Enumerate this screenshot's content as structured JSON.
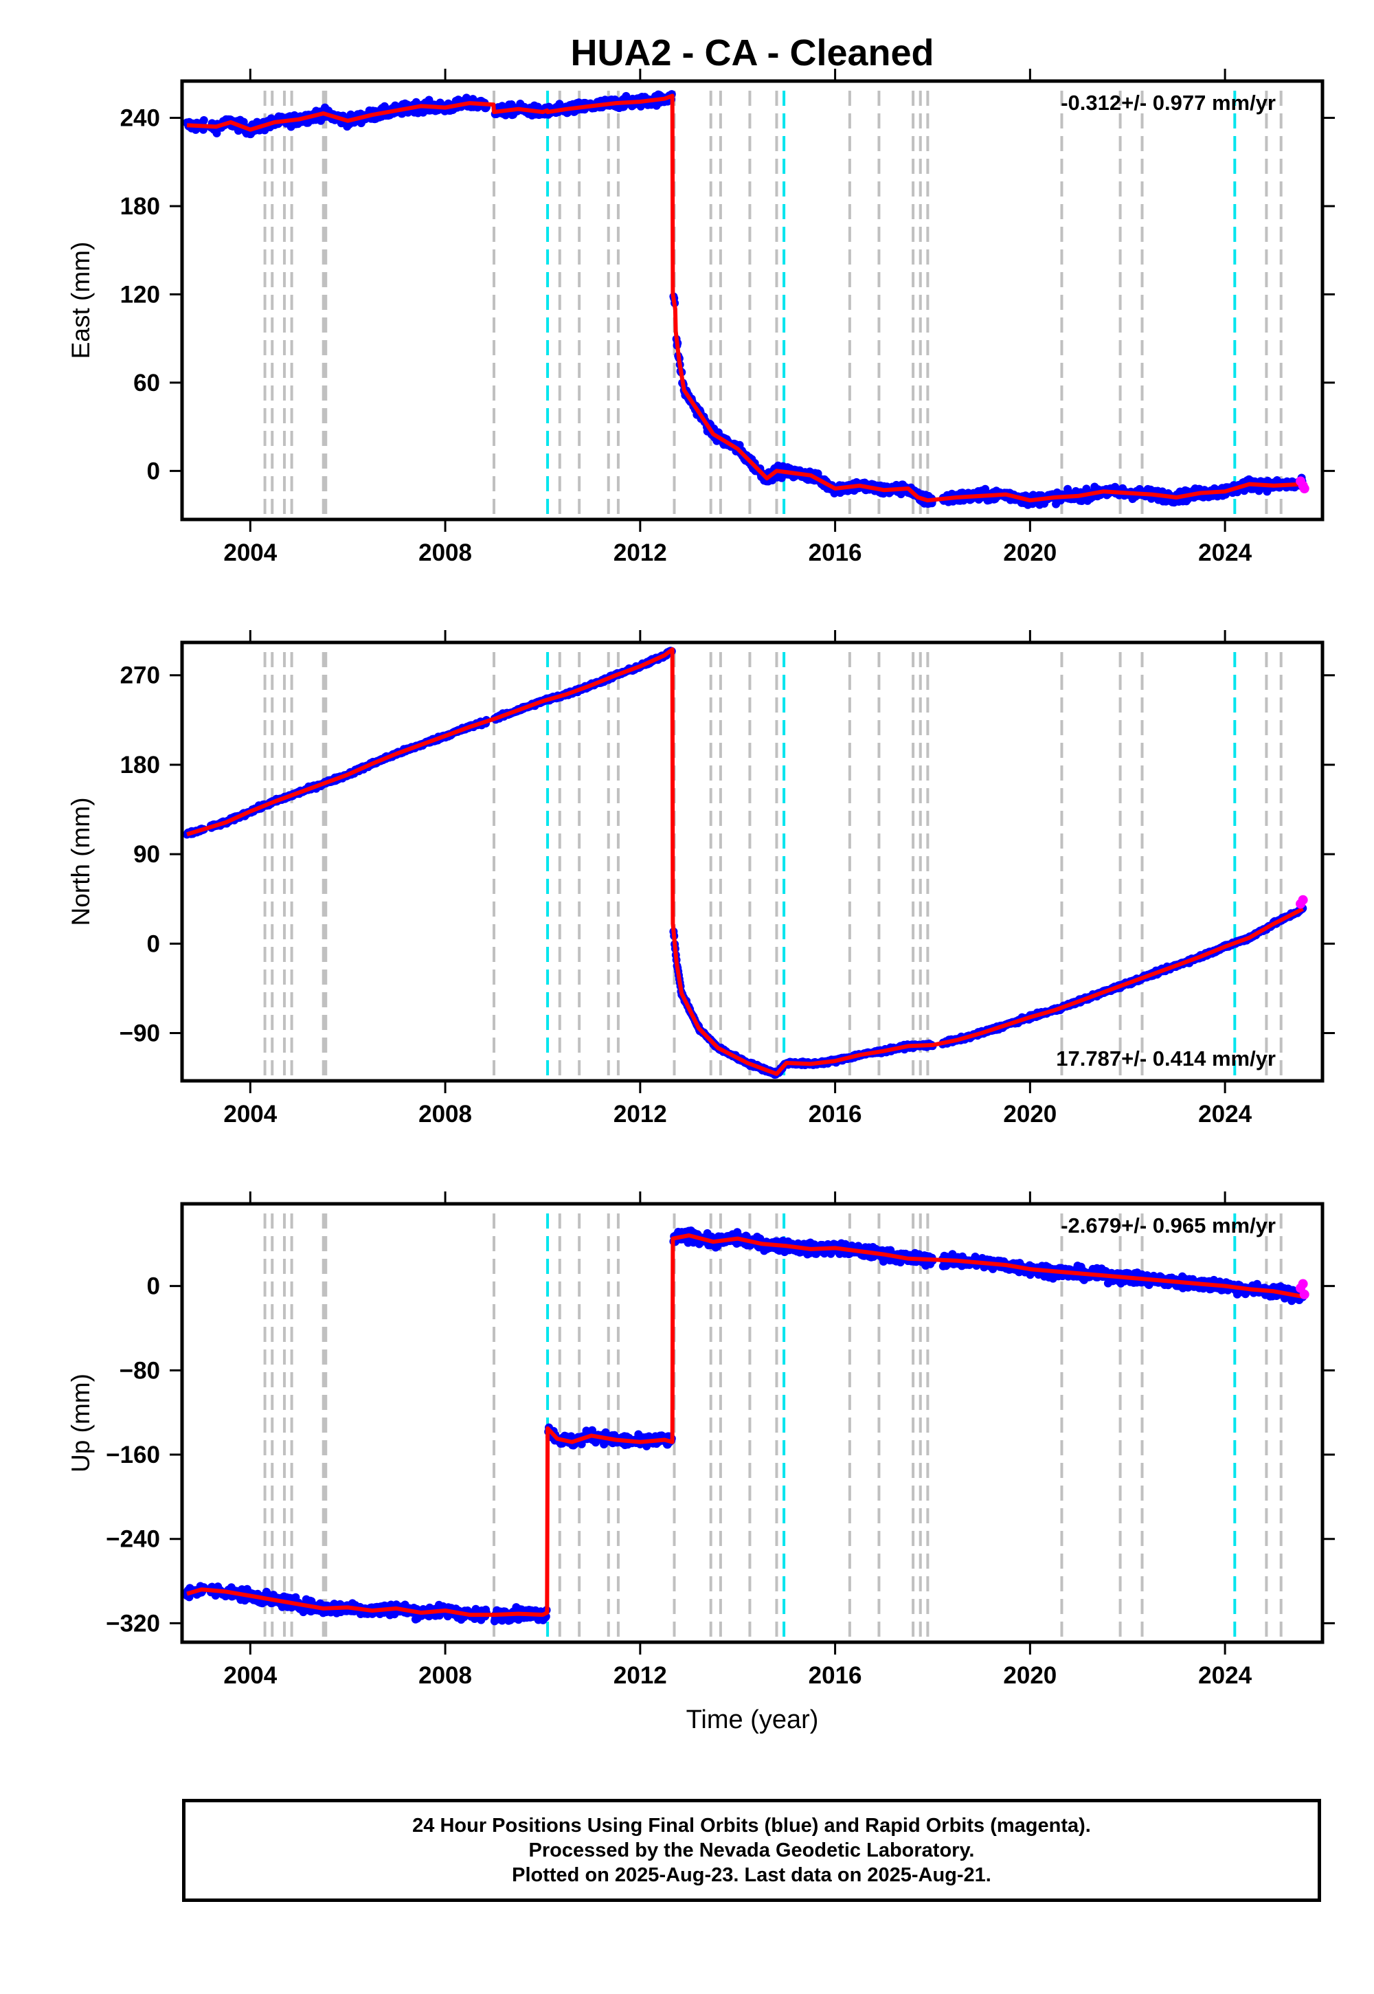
{
  "figure": {
    "title": "HUA2  - CA - Cleaned",
    "xlabel": "Time (year)"
  },
  "colors": {
    "final_orbits": "#0000ff",
    "rapid_orbits": "#ff00ff",
    "model": "#ff0000",
    "gray_dashed": "#c0c0c0",
    "cyan_dashed": "#00e5ee"
  },
  "footer": {
    "line1": "24 Hour Positions Using Final Orbits (blue) and Rapid Orbits (magenta).",
    "line2": "Processed by the Nevada Geodetic Laboratory.",
    "line3": "Plotted on 2025-Aug-23. Last data on 2025-Aug-21."
  },
  "chart_data": [
    {
      "type": "scatter",
      "ylabel": "East (mm)",
      "rate_text": "-0.312+/- 0.977 mm/yr",
      "rate_position": "top-right",
      "xlim": [
        2002.6,
        2026.0
      ],
      "ylim": [
        -33,
        265
      ],
      "xticks": [
        2004,
        2008,
        2012,
        2016,
        2020,
        2024
      ],
      "yticks": [
        0,
        60,
        120,
        180,
        240
      ],
      "gray_lines": [
        2004.3,
        2004.45,
        2004.7,
        2004.85,
        2005.5,
        2005.55,
        2009.0,
        2010.35,
        2010.75,
        2011.35,
        2011.55,
        2012.7,
        2013.45,
        2013.65,
        2014.25,
        2014.8,
        2016.3,
        2016.9,
        2017.6,
        2017.75,
        2017.9,
        2020.65,
        2021.85,
        2022.3,
        2024.85,
        2025.15
      ],
      "cyan_lines": [
        2010.1,
        2014.95,
        2024.2
      ],
      "trend": {
        "x": [
          2002.7,
          2003.3,
          2003.6,
          2004.0,
          2004.5,
          2005.0,
          2005.5,
          2006.0,
          2006.5,
          2007.0,
          2007.5,
          2008.0,
          2008.5,
          2008.99,
          2009.0,
          2009.5,
          2010.0,
          2010.09,
          2010.1,
          2010.5,
          2011.0,
          2011.5,
          2012.0,
          2012.5,
          2012.66,
          2012.67,
          2012.72,
          2012.73,
          2012.8,
          2012.9,
          2013.2,
          2013.5,
          2014.0,
          2014.6,
          2014.8,
          2015.5,
          2016.0,
          2016.5,
          2017.0,
          2017.5,
          2017.7,
          2017.9,
          2018.5,
          2019.0,
          2019.5,
          2020.0,
          2020.5,
          2021.0,
          2021.5,
          2022.0,
          2022.5,
          2023.0,
          2023.5,
          2024.0,
          2024.5,
          2025.0,
          2025.6
        ],
        "y": [
          235,
          234,
          237,
          232,
          237,
          239,
          243,
          238,
          242,
          245,
          248,
          247,
          250,
          249,
          244,
          246,
          244,
          245,
          244,
          246,
          248,
          250,
          251,
          253,
          255,
          120,
          110,
          95,
          75,
          55,
          40,
          25,
          15,
          -5,
          0,
          -3,
          -12,
          -10,
          -13,
          -12,
          -18,
          -20,
          -18,
          -17,
          -16,
          -20,
          -18,
          -17,
          -14,
          -15,
          -16,
          -18,
          -15,
          -14,
          -9,
          -10,
          -9
        ]
      },
      "scatter_spread": 6,
      "rapid_points": {
        "x": [
          2025.55,
          2025.6,
          2025.63
        ],
        "y": [
          -7,
          -10,
          -12
        ]
      }
    },
    {
      "type": "scatter",
      "ylabel": "North (mm)",
      "rate_text": "17.787+/- 0.414 mm/yr",
      "rate_position": "bottom-right",
      "xlim": [
        2002.6,
        2026.0
      ],
      "ylim": [
        -138,
        303
      ],
      "xticks": [
        2004,
        2008,
        2012,
        2016,
        2020,
        2024
      ],
      "yticks": [
        -90,
        0,
        90,
        180,
        270
      ],
      "gray_lines": [
        2004.3,
        2004.45,
        2004.7,
        2004.85,
        2005.5,
        2005.55,
        2009.0,
        2010.35,
        2010.75,
        2011.35,
        2011.55,
        2012.7,
        2013.45,
        2013.65,
        2014.25,
        2014.8,
        2016.3,
        2016.9,
        2017.6,
        2017.75,
        2017.9,
        2020.65,
        2021.85,
        2022.3,
        2024.85,
        2025.15
      ],
      "cyan_lines": [
        2010.1,
        2014.95,
        2024.2
      ],
      "trend": {
        "x": [
          2002.7,
          2003.5,
          2004.0,
          2004.5,
          2005.0,
          2005.5,
          2006.0,
          2006.5,
          2007.0,
          2007.5,
          2008.0,
          2008.5,
          2009.0,
          2009.5,
          2010.0,
          2010.5,
          2011.0,
          2011.5,
          2012.0,
          2012.5,
          2012.66,
          2012.67,
          2012.75,
          2012.85,
          2013.2,
          2013.6,
          2014.2,
          2014.8,
          2015.0,
          2015.5,
          2016.0,
          2016.5,
          2017.0,
          2017.5,
          2018.0,
          2018.5,
          2019.0,
          2019.5,
          2020.0,
          2020.5,
          2021.0,
          2021.5,
          2022.0,
          2022.5,
          2023.0,
          2023.5,
          2024.0,
          2024.5,
          2025.0,
          2025.6
        ],
        "y": [
          110,
          122,
          133,
          143,
          152,
          161,
          170,
          181,
          191,
          200,
          209,
          218,
          226,
          235,
          244,
          251,
          260,
          270,
          279,
          290,
          296,
          20,
          -20,
          -50,
          -85,
          -105,
          -120,
          -131,
          -120,
          -121,
          -118,
          -112,
          -108,
          -103,
          -102,
          -97,
          -90,
          -82,
          -74,
          -67,
          -58,
          -49,
          -40,
          -31,
          -22,
          -13,
          -3,
          6,
          20,
          35
        ]
      },
      "scatter_spread": 3,
      "rapid_points": {
        "x": [
          2025.55,
          2025.6
        ],
        "y": [
          40,
          44
        ]
      }
    },
    {
      "type": "scatter",
      "ylabel": "Up (mm)",
      "rate_text": "-2.679+/- 0.965 mm/yr",
      "rate_position": "top-right",
      "xlim": [
        2002.6,
        2026.0
      ],
      "ylim": [
        -338,
        78
      ],
      "xticks": [
        2004,
        2008,
        2012,
        2016,
        2020,
        2024
      ],
      "yticks": [
        -320,
        -240,
        -160,
        -80,
        0
      ],
      "gray_lines": [
        2004.3,
        2004.45,
        2004.7,
        2004.85,
        2005.5,
        2005.55,
        2009.0,
        2010.35,
        2010.75,
        2011.35,
        2011.55,
        2012.7,
        2013.45,
        2013.65,
        2014.25,
        2014.8,
        2016.3,
        2016.9,
        2017.6,
        2017.75,
        2017.9,
        2020.65,
        2021.85,
        2022.3,
        2024.85,
        2025.15
      ],
      "cyan_lines": [
        2010.1,
        2014.95,
        2024.2
      ],
      "trend": {
        "x": [
          2002.7,
          2003.0,
          2003.5,
          2004.0,
          2004.5,
          2005.0,
          2005.5,
          2006.0,
          2006.5,
          2007.0,
          2007.5,
          2008.0,
          2008.5,
          2009.0,
          2009.5,
          2010.0,
          2010.09,
          2010.1,
          2010.3,
          2010.6,
          2011.0,
          2011.5,
          2012.0,
          2012.5,
          2012.66,
          2012.67,
          2013.0,
          2013.5,
          2014.0,
          2014.5,
          2015.0,
          2015.5,
          2016.0,
          2016.5,
          2017.0,
          2017.5,
          2018.0,
          2018.5,
          2019.0,
          2019.5,
          2020.0,
          2020.5,
          2021.0,
          2021.5,
          2022.0,
          2022.5,
          2023.0,
          2023.5,
          2024.0,
          2024.5,
          2025.0,
          2025.6
        ],
        "y": [
          -292,
          -288,
          -290,
          -294,
          -298,
          -302,
          -306,
          -305,
          -308,
          -306,
          -310,
          -308,
          -312,
          -312,
          -311,
          -312,
          -310,
          -135,
          -145,
          -148,
          -142,
          -146,
          -148,
          -146,
          -148,
          45,
          48,
          42,
          45,
          40,
          38,
          35,
          36,
          33,
          30,
          26,
          25,
          24,
          22,
          20,
          16,
          14,
          12,
          10,
          8,
          6,
          4,
          2,
          0,
          -3,
          -5,
          -10
        ]
      },
      "scatter_spread": 9,
      "rapid_points": {
        "x": [
          2025.55,
          2025.6,
          2025.63
        ],
        "y": [
          -2,
          2,
          -8
        ]
      }
    }
  ]
}
